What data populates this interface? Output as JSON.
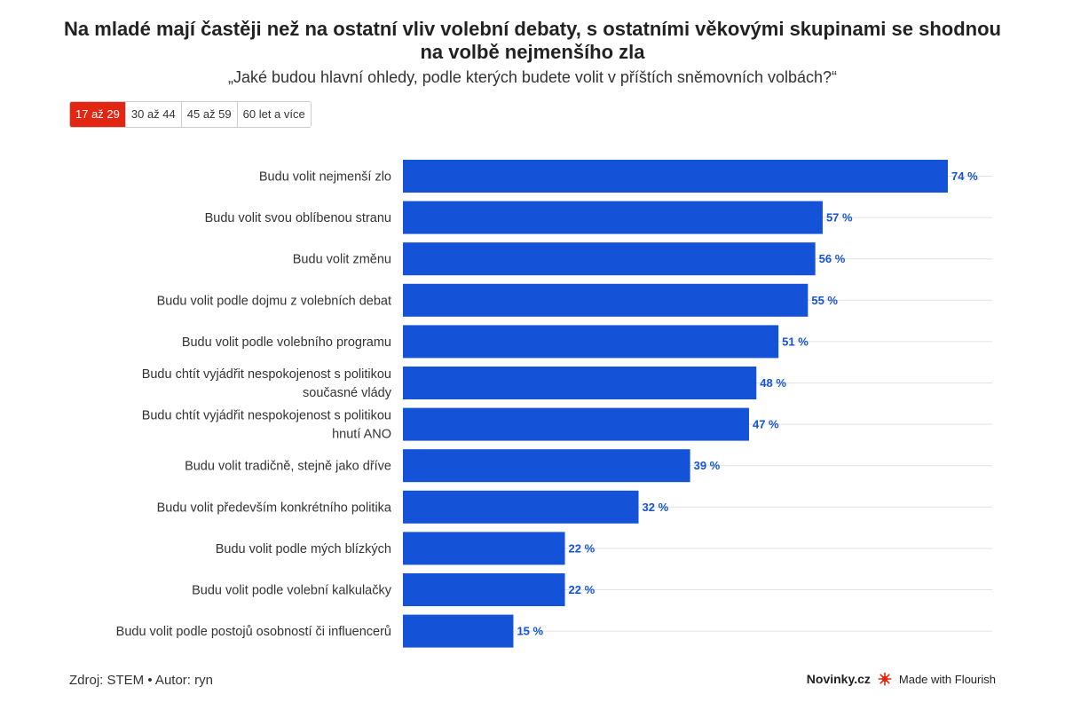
{
  "header": {
    "title": "Na mladé mají častěji než na ostatní vliv volební debaty, s ostatními věkovými skupinami se shodnou na volbě nejmenšího zla",
    "subtitle": "„Jaké budou hlavní ohledy, podle kterých budete volit v příštích sněmovních volbách?“"
  },
  "tabs": [
    {
      "label": "17 až 29",
      "active": true
    },
    {
      "label": "30 až 44",
      "active": false
    },
    {
      "label": "45 až 59",
      "active": false
    },
    {
      "label": "60 let a více",
      "active": false
    }
  ],
  "colors": {
    "bar": "#1452d8",
    "accent": "#e22612",
    "value_label": "#1452d8"
  },
  "chart_data": {
    "type": "bar",
    "orientation": "horizontal",
    "categories": [
      "Budu volit nejmenší zlo",
      "Budu volit svou oblíbenou stranu",
      "Budu volit změnu",
      "Budu volit podle dojmu z volebních debat",
      "Budu volit podle volebního programu",
      "Budu chtít vyjádřit nespokojenost s politikou současné vlády",
      "Budu chtít vyjádřit nespokojenost s politikou hnutí ANO",
      "Budu volit tradičně, stejně jako dříve",
      "Budu volit především konkrétního politika",
      "Budu volit podle mých blízkých",
      "Budu volit podle volební kalkulačky",
      "Budu volit podle postojů osobností či influencerů"
    ],
    "values": [
      74,
      57,
      56,
      55,
      51,
      48,
      47,
      39,
      32,
      22,
      22,
      15
    ],
    "value_labels": [
      "74 %",
      "57 %",
      "56 %",
      "55 %",
      "51 %",
      "48 %",
      "47 %",
      "39 %",
      "32 %",
      "22 %",
      "22 %",
      "15 %"
    ],
    "xlim": [
      0,
      74
    ],
    "grid": "horizontal-lines",
    "legend": "none"
  },
  "footer": {
    "source": "Zdroj: STEM • Autor: ryn",
    "brand": "Novinky.cz",
    "made_with": "Made with Flourish"
  }
}
